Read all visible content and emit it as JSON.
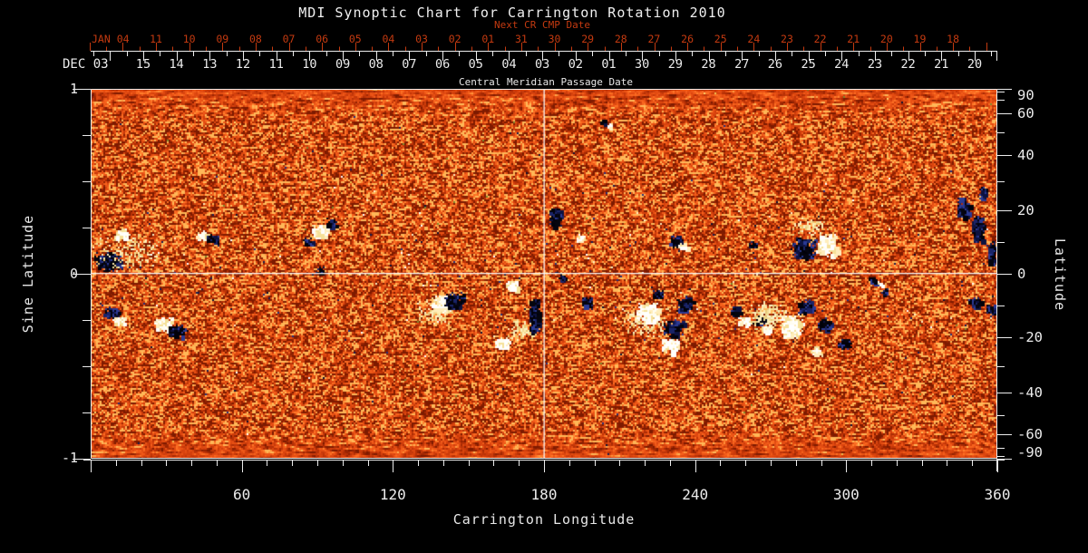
{
  "header": {
    "title": "MDI Synoptic Chart for Carrington Rotation 2010"
  },
  "top_axis": {
    "next_title": "Next CR CMP Date",
    "next_year_label": "JAN 04",
    "next_days": [
      "11",
      "10",
      "09",
      "08",
      "07",
      "06",
      "05",
      "04",
      "03",
      "02",
      "01",
      "31",
      "30",
      "29",
      "28",
      "27",
      "26",
      "25",
      "24",
      "23",
      "22",
      "21",
      "20",
      "19",
      "18"
    ],
    "cmp_year_label": "DEC 03",
    "cmp_days": [
      "15",
      "14",
      "13",
      "12",
      "11",
      "10",
      "09",
      "08",
      "07",
      "06",
      "05",
      "04",
      "03",
      "02",
      "01",
      "30",
      "29",
      "28",
      "27",
      "26",
      "25",
      "24",
      "23",
      "22",
      "21",
      "20"
    ],
    "cmp_title": "Central Meridian Passage Date"
  },
  "x_axis": {
    "label": "Carrington Longitude",
    "tick_labels": [
      "60",
      "120",
      "180",
      "240",
      "300",
      "360"
    ]
  },
  "y_axis_left": {
    "label": "Sine Latitude",
    "tick_labels": [
      "1",
      "0",
      "-1"
    ]
  },
  "y_axis_right": {
    "label": "Latitude",
    "tick_labels": [
      "90",
      "60",
      "40",
      "20",
      "0",
      "-20",
      "-40",
      "-60",
      "-90"
    ]
  },
  "colors": {
    "background": "#000000",
    "title_text": "#f0f0f0",
    "axis": "#ececec",
    "next_cr_accent": "#c43a10",
    "map_quiet_dark": "#7d1a00",
    "map_quiet_bright": "#ffb858",
    "negative_polarity": "#141a4e",
    "positive_polarity": "#ffffff",
    "plage": "#f2dc96",
    "reference_line": "#fafafa"
  },
  "chart_data": {
    "type": "heatmap",
    "title": "MDI Synoptic Chart for Carrington Rotation 2010",
    "xlabel": "Carrington Longitude",
    "xlim": [
      0,
      360
    ],
    "x_major_ticks": [
      60,
      120,
      180,
      240,
      300,
      360
    ],
    "x_minor_step_deg": 10,
    "ylabel_left": "Sine Latitude",
    "ylim_sine_latitude": [
      -1,
      1
    ],
    "y_left_major_ticks": [
      1,
      0,
      -1
    ],
    "y_left_minor_ticks": [
      0.75,
      0.5,
      0.25,
      -0.25,
      -0.5,
      -0.75
    ],
    "ylabel_right": "Latitude",
    "y_right_labeled_ticks_deg": [
      90,
      60,
      40,
      20,
      0,
      -20,
      -40,
      -60,
      -90
    ],
    "y_right_minor_ticks_deg": [
      80,
      70,
      50,
      30,
      10,
      -10,
      -30,
      -50,
      -70,
      -80
    ],
    "grid": false,
    "top_axis_cmp_dates": {
      "year_month": "DEC 03",
      "days": [
        "15",
        "14",
        "13",
        "12",
        "11",
        "10",
        "09",
        "08",
        "07",
        "06",
        "05",
        "04",
        "03",
        "02",
        "01",
        "30",
        "29",
        "28",
        "27",
        "26",
        "25",
        "24",
        "23",
        "22",
        "21",
        "20"
      ]
    },
    "top_axis_next_cr_dates": {
      "year_month": "JAN 04",
      "days": [
        "11",
        "10",
        "09",
        "08",
        "07",
        "06",
        "05",
        "04",
        "03",
        "02",
        "01",
        "31",
        "30",
        "29",
        "28",
        "27",
        "26",
        "25",
        "24",
        "23",
        "22",
        "21",
        "20",
        "19",
        "18"
      ]
    },
    "reference_lines": {
      "vertical_longitude_deg": 180,
      "horizontal_sine_latitude": 0
    },
    "colormap": {
      "quiet_sun": "orange-red speckle",
      "negative_field": "dark blue to black",
      "positive_field": "white to pale yellow",
      "plage": "pale yellow speckle"
    },
    "active_regions": [
      {
        "lon": 7,
        "slat": 0.07,
        "pol": "neg",
        "elon": 5.8,
        "eslat": 0.055,
        "n": 240
      },
      {
        "lon": 16,
        "slat": 0.12,
        "pol": "plage",
        "elon": 16,
        "eslat": 0.11,
        "n": 170
      },
      {
        "lon": 12,
        "slat": 0.22,
        "pol": "pos",
        "elon": 2.5,
        "eslat": 0.025,
        "n": 60
      },
      {
        "lon": 8,
        "slat": -0.21,
        "pol": "neg",
        "elon": 3.2,
        "eslat": 0.035,
        "n": 80
      },
      {
        "lon": 11,
        "slat": -0.25,
        "pol": "pos",
        "elon": 2.5,
        "eslat": 0.025,
        "n": 50
      },
      {
        "lon": 29,
        "slat": -0.27,
        "pol": "pos",
        "elon": 4,
        "eslat": 0.04,
        "n": 110
      },
      {
        "lon": 34,
        "slat": -0.31,
        "pol": "neg",
        "elon": 4,
        "eslat": 0.04,
        "n": 110
      },
      {
        "lon": 44,
        "slat": 0.21,
        "pol": "pos",
        "elon": 2.2,
        "eslat": 0.025,
        "n": 55
      },
      {
        "lon": 48,
        "slat": 0.19,
        "pol": "neg",
        "elon": 2.2,
        "eslat": 0.025,
        "n": 45
      },
      {
        "lon": 91,
        "slat": 0.24,
        "pol": "pos",
        "elon": 3.6,
        "eslat": 0.035,
        "n": 110
      },
      {
        "lon": 95,
        "slat": 0.28,
        "pol": "neg",
        "elon": 2.2,
        "eslat": 0.025,
        "n": 40
      },
      {
        "lon": 86,
        "slat": 0.18,
        "pol": "neg",
        "elon": 1.8,
        "eslat": 0.02,
        "n": 25
      },
      {
        "lon": 91,
        "slat": 0.02,
        "pol": "neg",
        "elon": 1.8,
        "eslat": 0.02,
        "n": 25
      },
      {
        "lon": 137,
        "slat": -0.2,
        "pol": "plage",
        "elon": 8,
        "eslat": 0.07,
        "n": 120
      },
      {
        "lon": 139,
        "slat": -0.16,
        "pol": "pos",
        "elon": 4.3,
        "eslat": 0.05,
        "n": 130
      },
      {
        "lon": 144,
        "slat": -0.14,
        "pol": "neg",
        "elon": 4.3,
        "eslat": 0.05,
        "n": 130
      },
      {
        "lon": 167,
        "slat": -0.06,
        "pol": "pos",
        "elon": 2.9,
        "eslat": 0.03,
        "n": 60
      },
      {
        "lon": 171,
        "slat": -0.3,
        "pol": "plage",
        "elon": 6.5,
        "eslat": 0.06,
        "n": 90
      },
      {
        "lon": 176,
        "slat": -0.22,
        "pol": "neg",
        "elon": 2.2,
        "eslat": 0.1,
        "n": 150
      },
      {
        "lon": 163,
        "slat": -0.37,
        "pol": "pos",
        "elon": 3.2,
        "eslat": 0.03,
        "n": 70
      },
      {
        "lon": 184,
        "slat": 0.31,
        "pol": "neg",
        "elon": 2.5,
        "eslat": 0.055,
        "n": 120
      },
      {
        "lon": 194,
        "slat": 0.2,
        "pol": "pos",
        "elon": 1.4,
        "eslat": 0.015,
        "n": 25
      },
      {
        "lon": 187,
        "slat": -0.02,
        "pol": "neg",
        "elon": 1.4,
        "eslat": 0.02,
        "n": 25
      },
      {
        "lon": 197,
        "slat": -0.15,
        "pol": "neg",
        "elon": 2.2,
        "eslat": 0.025,
        "n": 45
      },
      {
        "lon": 206,
        "slat": 0.8,
        "pol": "pos",
        "elon": 1.4,
        "eslat": 0.015,
        "n": 18
      },
      {
        "lon": 203,
        "slat": 0.82,
        "pol": "neg",
        "elon": 1.4,
        "eslat": 0.015,
        "n": 14
      },
      {
        "lon": 220,
        "slat": -0.25,
        "pol": "plage",
        "elon": 9.4,
        "eslat": 0.09,
        "n": 200
      },
      {
        "lon": 221,
        "slat": -0.21,
        "pol": "pos",
        "elon": 5,
        "eslat": 0.06,
        "n": 200
      },
      {
        "lon": 230,
        "slat": -0.38,
        "pol": "pos",
        "elon": 3.6,
        "eslat": 0.04,
        "n": 110
      },
      {
        "lon": 231,
        "slat": -0.29,
        "pol": "neg",
        "elon": 4.3,
        "eslat": 0.05,
        "n": 160
      },
      {
        "lon": 236,
        "slat": -0.16,
        "pol": "neg",
        "elon": 3.6,
        "eslat": 0.04,
        "n": 110
      },
      {
        "lon": 225,
        "slat": -0.11,
        "pol": "neg",
        "elon": 2.5,
        "eslat": 0.025,
        "n": 50
      },
      {
        "lon": 232,
        "slat": 0.18,
        "pol": "neg",
        "elon": 2.5,
        "eslat": 0.03,
        "n": 60
      },
      {
        "lon": 235,
        "slat": 0.15,
        "pol": "pos",
        "elon": 1.8,
        "eslat": 0.02,
        "n": 35
      },
      {
        "lon": 256,
        "slat": -0.2,
        "pol": "neg",
        "elon": 2.5,
        "eslat": 0.03,
        "n": 55
      },
      {
        "lon": 259,
        "slat": -0.25,
        "pol": "pos",
        "elon": 2.2,
        "eslat": 0.025,
        "n": 45
      },
      {
        "lon": 265,
        "slat": -0.25,
        "pol": "neg",
        "elon": 2.2,
        "eslat": 0.025,
        "n": 45
      },
      {
        "lon": 268,
        "slat": -0.29,
        "pol": "pos",
        "elon": 1.8,
        "eslat": 0.02,
        "n": 30
      },
      {
        "lon": 263,
        "slat": 0.16,
        "pol": "neg",
        "elon": 1.8,
        "eslat": 0.02,
        "n": 30
      },
      {
        "lon": 285,
        "slat": 0.26,
        "pol": "plage",
        "elon": 7.2,
        "eslat": 0.05,
        "n": 90
      },
      {
        "lon": 283,
        "slat": 0.14,
        "pol": "neg",
        "elon": 5,
        "eslat": 0.06,
        "n": 240
      },
      {
        "lon": 292,
        "slat": 0.16,
        "pol": "pos",
        "elon": 4.3,
        "eslat": 0.065,
        "n": 210
      },
      {
        "lon": 269,
        "slat": -0.22,
        "pol": "plage",
        "elon": 8.6,
        "eslat": 0.08,
        "n": 200
      },
      {
        "lon": 278,
        "slat": -0.28,
        "pol": "pos",
        "elon": 4.7,
        "eslat": 0.065,
        "n": 330
      },
      {
        "lon": 284,
        "slat": -0.18,
        "pol": "neg",
        "elon": 3.6,
        "eslat": 0.04,
        "n": 110
      },
      {
        "lon": 291,
        "slat": -0.27,
        "pol": "neg",
        "elon": 2.9,
        "eslat": 0.035,
        "n": 80
      },
      {
        "lon": 299,
        "slat": -0.38,
        "pol": "neg",
        "elon": 2.9,
        "eslat": 0.03,
        "n": 70
      },
      {
        "lon": 288,
        "slat": -0.42,
        "pol": "pos",
        "elon": 2.5,
        "eslat": 0.025,
        "n": 45
      },
      {
        "lon": 310,
        "slat": -0.03,
        "pol": "neg",
        "elon": 1.8,
        "eslat": 0.02,
        "n": 30
      },
      {
        "lon": 315,
        "slat": -0.09,
        "pol": "neg",
        "elon": 1.4,
        "eslat": 0.02,
        "n": 22
      },
      {
        "lon": 313,
        "slat": -0.05,
        "pol": "pos",
        "elon": 1.4,
        "eslat": 0.015,
        "n": 18
      },
      {
        "lon": 346,
        "slat": 0.36,
        "pol": "neg",
        "elon": 2.9,
        "eslat": 0.06,
        "n": 110
      },
      {
        "lon": 352,
        "slat": 0.25,
        "pol": "neg",
        "elon": 2.5,
        "eslat": 0.08,
        "n": 130
      },
      {
        "lon": 358,
        "slat": 0.12,
        "pol": "neg",
        "elon": 2.2,
        "eslat": 0.07,
        "n": 100
      },
      {
        "lon": 354,
        "slat": 0.44,
        "pol": "neg",
        "elon": 2.2,
        "eslat": 0.035,
        "n": 45
      },
      {
        "lon": 351,
        "slat": -0.15,
        "pol": "neg",
        "elon": 2.5,
        "eslat": 0.03,
        "n": 50
      },
      {
        "lon": 357,
        "slat": -0.19,
        "pol": "neg",
        "elon": 2.2,
        "eslat": 0.035,
        "n": 50
      }
    ]
  }
}
